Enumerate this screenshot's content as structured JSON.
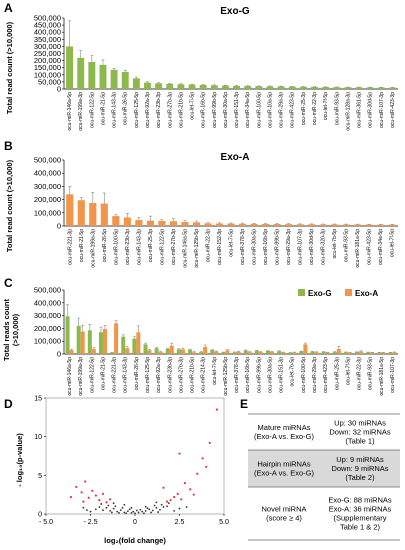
{
  "panels": {
    "A": "A",
    "B": "B",
    "C": "C",
    "D": "D",
    "E": "E"
  },
  "colors": {
    "exo_g": "#8db84a",
    "exo_a": "#f0954a",
    "highlight": "#e53935",
    "point": "#333333"
  },
  "chart_data": [
    {
      "id": "A",
      "type": "bar",
      "title": "Exo-G",
      "ylabel": "Total read count (>10,000)",
      "ylim": [
        0,
        500000
      ],
      "yticks": [
        "0",
        "50,000",
        "100,000",
        "150,000",
        "200,000",
        "250,000",
        "300,000",
        "350,000",
        "400,000",
        "450,000",
        "500,000"
      ],
      "color": "#8db84a",
      "categories": [
        "ocu-miR-146a-5p",
        "ocu-miR-199a-3p",
        "ocu-miR-122-5p",
        "ocu-miR-21-5p",
        "ocu-miR-143-3p",
        "ocu-miR-26-5p",
        "ocu-miR-125-5p",
        "ocu-miR-92a-3p",
        "ocu-miR-23b-3p",
        "ocu-miR-27b-3p",
        "ocu-miR-21b-5p",
        "ocu-let-7i-5p",
        "ocu-miR-16b-5p",
        "ocu-miR-99b-5p",
        "ocu-miR-30a-5p",
        "ocu-miR-151-3p",
        "ocu-miR-34a-5p",
        "ocu-miR-100-5p",
        "ocu-miR-10a-5p",
        "ocu-miR-29a-3p",
        "ocu-miR-423-5p",
        "ocu-miR-25-3p",
        "ocu-miR-22-3p",
        "ocu-let-7f-5p",
        "ocu-miR-93-5p",
        "ocu-miR-128a-3p",
        "ocu-miR-361-5p",
        "ocu-miR-30d-5p",
        "ocu-miR-107-3p",
        "ocu-miR-423-3p"
      ],
      "values": [
        300000,
        220000,
        190000,
        170000,
        135000,
        120000,
        75000,
        45000,
        40000,
        36000,
        33000,
        31000,
        28000,
        26000,
        24000,
        22000,
        21000,
        20000,
        19000,
        18000,
        17000,
        16000,
        15000,
        14000,
        13000,
        12500,
        12000,
        11500,
        11000,
        10500
      ],
      "errors": [
        180000,
        50000,
        45000,
        35000,
        10000,
        12000,
        9000,
        6000,
        5000,
        4000,
        4000,
        3000,
        3000,
        3000,
        2500,
        2500,
        2500,
        2000,
        2000,
        2000,
        2000,
        2000,
        1500,
        1500,
        1500,
        1500,
        1500,
        1000,
        1000,
        1000
      ]
    },
    {
      "id": "B",
      "type": "bar",
      "title": "Exo-A",
      "ylabel": "Total read count (>10,000)",
      "ylim": [
        0,
        500000
      ],
      "yticks": [
        "0",
        "100,000",
        "200,000",
        "300,000",
        "400,000",
        "500,000"
      ],
      "color": "#f0954a",
      "categories": [
        "ocu-miR-221-3p",
        "ocu-miR-21-5p",
        "ocu-miR-199a-3p",
        "ocu-miR-26-5p",
        "ocu-miR-100-5p",
        "ocu-miR-23b-3p",
        "ocu-miR-143-3p",
        "ocu-miR-25-3p",
        "ocu-miR-122-5p",
        "ocu-miR-27b-3p",
        "ocu-miR-146a-5p",
        "ocu-miR-125b-5p",
        "ocu-miR-22-3p",
        "ocu-miR-152-3p",
        "ocu-let-7i-5p",
        "ocu-miR-378-3p",
        "ocu-miR-30a-5p",
        "ocu-miR-16b-5p",
        "ocu-miR-99b-5p",
        "ocu-miR-29a-3p",
        "ocu-miR-107-3p",
        "ocu-miR-30d-5p",
        "ocu-miR-320-3p",
        "ocu-let-7b-5p",
        "ocu-miR-93-5p",
        "ocu-miR-181a-5p",
        "ocu-miR-423-5p",
        "ocu-miR-34a-5p",
        "ocu-let-7f-5p"
      ],
      "values": [
        240000,
        195000,
        175000,
        170000,
        75000,
        65000,
        45000,
        40000,
        38000,
        36000,
        30000,
        28000,
        20000,
        19000,
        18000,
        17000,
        16000,
        15000,
        15000,
        14000,
        13000,
        13000,
        12000,
        12000,
        11500,
        11000,
        11000,
        10500,
        10500
      ],
      "errors": [
        60000,
        20000,
        80000,
        80000,
        10000,
        30000,
        20000,
        35000,
        10000,
        20000,
        10000,
        10000,
        6000,
        5000,
        5000,
        5000,
        4000,
        4000,
        4000,
        4000,
        3000,
        3000,
        3000,
        3000,
        3000,
        3000,
        2000,
        2000,
        2000
      ]
    },
    {
      "id": "C",
      "type": "bar",
      "ylabel": "Total reads count\n(>10,000)",
      "ylim": [
        0,
        500000
      ],
      "yticks": [
        "0",
        "100,000",
        "200,000",
        "300,000",
        "400,000",
        "500,000"
      ],
      "legend": [
        "Exo-G",
        "Exo-A"
      ],
      "categories": [
        "ocu-miR-146a-5p",
        "ocu-miR-199a-3p",
        "ocu-miR-122-5p",
        "ocu-miR-21-5p",
        "ocu-miR-221-3p",
        "ocu-miR-143-3p",
        "ocu-miR-26-5p",
        "ocu-miR-125-5p",
        "ocu-miR-92a-3p",
        "ocu-miR-23b-3p",
        "ocu-miR-27b-3p",
        "ocu-miR-21b-5p",
        "ocu-miR-214-3p",
        "ocu-let-7i-5p",
        "ocu-miR-125b-5p",
        "ocu-miR-378-3p",
        "ocu-miR-16b-5p",
        "ocu-miR-99b-5p",
        "ocu-miR-30a-5p",
        "ocu-miR-151-3p",
        "ocu-let-7b-5p",
        "ocu-miR-100-5p",
        "ocu-miR-29a-3p",
        "ocu-miR-423-5p",
        "ocu-miR-25-3p",
        "ocu-let-7f-5p",
        "ocu-miR-22-3p",
        "ocu-miR-93-5p",
        "ocu-miR-181a-5p",
        "ocu-miR-107-3p"
      ],
      "series": [
        {
          "name": "Exo-G",
          "color": "#8db84a",
          "values": [
            295000,
            220000,
            185000,
            170000,
            10000,
            135000,
            120000,
            75000,
            45000,
            40000,
            36000,
            33000,
            15000,
            31000,
            12000,
            13000,
            28000,
            26000,
            24000,
            22000,
            10000,
            20000,
            18000,
            17000,
            16000,
            14000,
            15000,
            13000,
            11000,
            11000
          ],
          "errors": [
            90000,
            60000,
            45000,
            40000,
            3000,
            15000,
            15000,
            10000,
            8000,
            6000,
            5000,
            5000,
            4000,
            4000,
            3000,
            3000,
            3000,
            3000,
            3000,
            3000,
            2000,
            2000,
            2000,
            2000,
            2000,
            2000,
            2000,
            2000,
            2000,
            2000
          ]
        },
        {
          "name": "Exo-A",
          "color": "#f0954a",
          "values": [
            30000,
            175000,
            38000,
            195000,
            240000,
            45000,
            170000,
            28000,
            15000,
            65000,
            36000,
            14000,
            55000,
            18000,
            28000,
            17000,
            15000,
            15000,
            16000,
            12000,
            12000,
            75000,
            14000,
            11000,
            40000,
            10500,
            20000,
            11500,
            11000,
            13000
          ],
          "errors": [
            8000,
            50000,
            10000,
            30000,
            20000,
            12000,
            50000,
            8000,
            5000,
            20000,
            10000,
            5000,
            15000,
            5000,
            6000,
            5000,
            4000,
            4000,
            4000,
            3000,
            3000,
            10000,
            3000,
            3000,
            20000,
            2000,
            5000,
            2000,
            2000,
            3000
          ]
        }
      ]
    },
    {
      "id": "D",
      "type": "scatter",
      "xlabel": "log₂(fold change)",
      "ylabel": "- log₁₀(p-value)",
      "xlim": [
        -5.0,
        5.0
      ],
      "ylim": [
        0,
        15
      ],
      "xticks": [
        "- 5.0",
        "- 2.5",
        "0",
        "2.5",
        "5.0"
      ],
      "yticks": [
        "0",
        "5",
        "10",
        "15"
      ],
      "significant": [
        [
          -3.3,
          3.5
        ],
        [
          -3.0,
          2.8
        ],
        [
          -2.8,
          4.2
        ],
        [
          -2.6,
          2.1
        ],
        [
          -2.4,
          3.0
        ],
        [
          -2.2,
          2.4
        ],
        [
          -2.0,
          1.8
        ],
        [
          -1.8,
          2.6
        ],
        [
          -1.6,
          1.5
        ],
        [
          -1.4,
          1.9
        ],
        [
          -3.6,
          2.2
        ],
        [
          -2.9,
          1.6
        ],
        [
          2.0,
          1.8
        ],
        [
          2.4,
          2.6
        ],
        [
          2.8,
          4.0
        ],
        [
          3.1,
          3.2
        ],
        [
          3.5,
          5.2
        ],
        [
          4.0,
          6.1
        ],
        [
          2.2,
          2.2
        ],
        [
          1.8,
          1.6
        ],
        [
          2.6,
          1.9
        ],
        [
          3.3,
          2.5
        ],
        [
          4.6,
          13.5
        ],
        [
          4.2,
          9.2
        ],
        [
          3.8,
          7.2
        ],
        [
          2.5,
          7.8
        ],
        [
          1.6,
          3.4
        ]
      ],
      "nonsignificant": [
        [
          -2.2,
          0.6
        ],
        [
          -2.0,
          0.9
        ],
        [
          -1.8,
          0.5
        ],
        [
          -1.6,
          0.8
        ],
        [
          -1.4,
          0.4
        ],
        [
          -1.2,
          0.7
        ],
        [
          -1.0,
          0.3
        ],
        [
          -0.8,
          0.5
        ],
        [
          -0.6,
          0.2
        ],
        [
          -0.4,
          0.35
        ],
        [
          -0.2,
          0.15
        ],
        [
          0.0,
          0.1
        ],
        [
          0.2,
          0.2
        ],
        [
          0.4,
          0.3
        ],
        [
          0.6,
          0.4
        ],
        [
          0.8,
          0.6
        ],
        [
          1.0,
          0.45
        ],
        [
          1.2,
          0.8
        ],
        [
          1.4,
          0.55
        ],
        [
          1.6,
          0.9
        ],
        [
          1.8,
          1.0
        ],
        [
          -1.5,
          1.1
        ],
        [
          -1.1,
          1.0
        ],
        [
          -0.7,
          0.8
        ],
        [
          -0.3,
          0.6
        ],
        [
          0.3,
          0.55
        ],
        [
          0.7,
          0.75
        ],
        [
          1.1,
          1.1
        ],
        [
          1.5,
          1.2
        ],
        [
          -2.5,
          0.3
        ],
        [
          -2.7,
          0.5
        ],
        [
          2.2,
          0.4
        ],
        [
          2.5,
          0.7
        ],
        [
          -0.9,
          0.15
        ],
        [
          0.9,
          0.2
        ],
        [
          -1.9,
          1.3
        ],
        [
          1.9,
          1.4
        ],
        [
          0.1,
          0.45
        ],
        [
          -0.1,
          0.3
        ],
        [
          0.5,
          0.1
        ],
        [
          -0.5,
          0.1
        ],
        [
          -1.3,
          0.2
        ],
        [
          1.3,
          0.25
        ],
        [
          -2.9,
          0.8
        ],
        [
          2.9,
          0.9
        ],
        [
          -0.2,
          0.8
        ],
        [
          0.6,
          0.95
        ],
        [
          -0.6,
          1.2
        ],
        [
          1.2,
          1.5
        ],
        [
          -1.2,
          1.4
        ]
      ]
    }
  ],
  "table": {
    "rows": [
      {
        "label_lines": [
          "Mature miRNAs",
          "(Exo-A vs. Exo-G)"
        ],
        "value_lines": [
          "Up: 30 miRNAs",
          "Down: 32 miRNAs",
          "(Table 1)"
        ],
        "shaded": false
      },
      {
        "label_lines": [
          "Hairpin miRNAs",
          "(Exo-A vs. Exo-G)"
        ],
        "value_lines": [
          "Up: 9 miRNAs",
          "Down: 9 miRNAs",
          "(Table 2)"
        ],
        "shaded": true
      },
      {
        "label_lines": [
          "Novel miRNA",
          "(score ≥ 4)"
        ],
        "value_lines": [
          "Exo-G: 88 miRNAs",
          "Exo-A: 36 miRNAs",
          "(Supplementary",
          "Table 1 & 2)"
        ],
        "shaded": false
      }
    ]
  }
}
